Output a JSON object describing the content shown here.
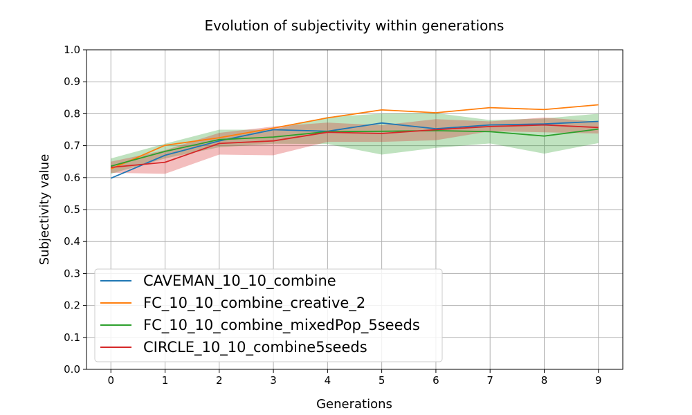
{
  "chart_data": {
    "type": "line",
    "title": "Evolution of subjectivity within generations",
    "xlabel": "Generations",
    "ylabel": "Subjectivity value",
    "x": [
      0,
      1,
      2,
      3,
      4,
      5,
      6,
      7,
      8,
      9
    ],
    "xlim": [
      -0.45,
      9.45
    ],
    "ylim": [
      0.0,
      1.0
    ],
    "xticks": [
      "0",
      "1",
      "2",
      "3",
      "4",
      "5",
      "6",
      "7",
      "8",
      "9"
    ],
    "yticks": [
      "0.0",
      "0.1",
      "0.2",
      "0.3",
      "0.4",
      "0.5",
      "0.6",
      "0.7",
      "0.8",
      "0.9",
      "1.0"
    ],
    "grid": true,
    "legend_position": "lower-left",
    "series": [
      {
        "name": "CAVEMAN_10_10_combine",
        "color": "#1f77b4",
        "values": [
          0.598,
          0.67,
          0.715,
          0.75,
          0.745,
          0.771,
          0.753,
          0.765,
          0.768,
          0.776
        ],
        "band": null
      },
      {
        "name": "FC_10_10_combine_creative_2",
        "color": "#ff7f0e",
        "values": [
          0.627,
          0.701,
          0.725,
          0.755,
          0.787,
          0.812,
          0.803,
          0.819,
          0.813,
          0.828
        ],
        "band": null
      },
      {
        "name": "FC_10_10_combine_mixedPop_5seeds",
        "color": "#2ca02c",
        "values": [
          0.636,
          0.682,
          0.719,
          0.727,
          0.744,
          0.745,
          0.747,
          0.744,
          0.73,
          0.752
        ],
        "band": {
          "lower": [
            0.612,
            0.66,
            0.695,
            0.706,
            0.705,
            0.672,
            0.693,
            0.707,
            0.675,
            0.708
          ],
          "upper": [
            0.66,
            0.706,
            0.75,
            0.75,
            0.79,
            0.8,
            0.802,
            0.78,
            0.785,
            0.8
          ]
        }
      },
      {
        "name": "CIRCLE_10_10_combine5seeds",
        "color": "#d62728",
        "values": [
          0.632,
          0.648,
          0.707,
          0.715,
          0.742,
          0.738,
          0.75,
          0.76,
          0.765,
          0.757
        ],
        "band": {
          "lower": [
            0.615,
            0.612,
            0.672,
            0.67,
            0.712,
            0.712,
            0.717,
            0.745,
            0.742,
            0.738
          ],
          "upper": [
            0.65,
            0.686,
            0.74,
            0.76,
            0.772,
            0.764,
            0.783,
            0.776,
            0.788,
            0.775
          ]
        }
      }
    ]
  }
}
